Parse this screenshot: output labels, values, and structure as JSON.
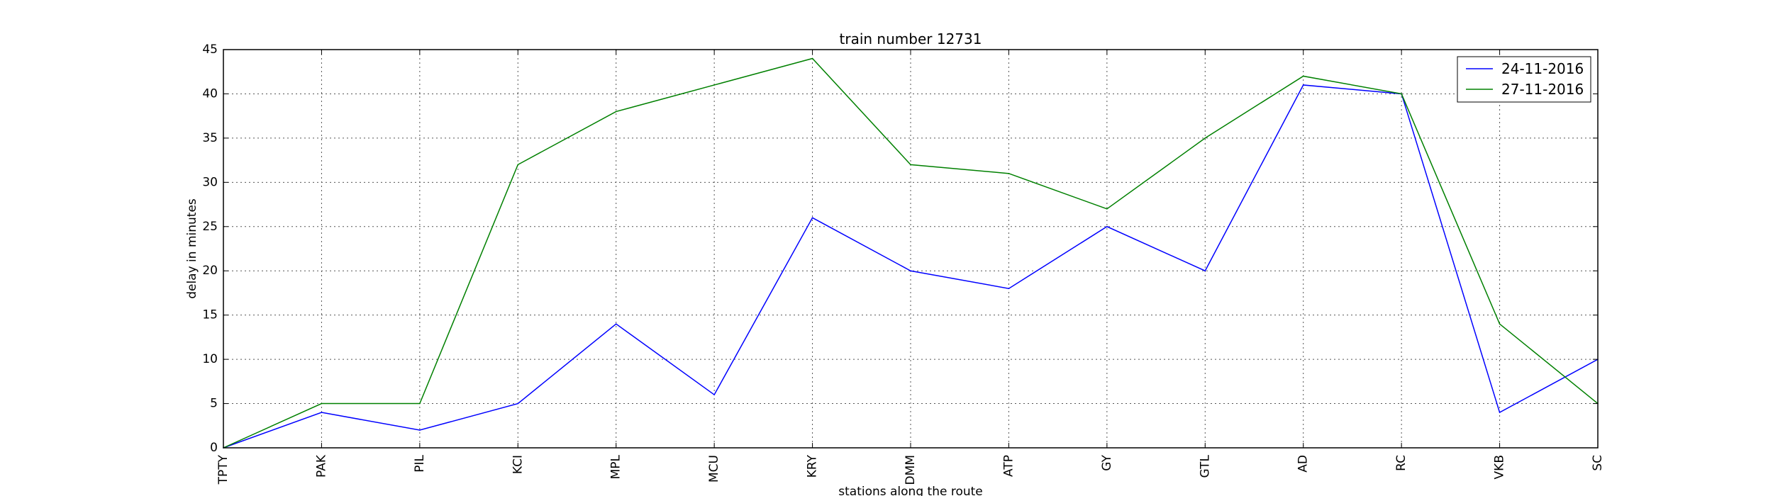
{
  "chart_data": {
    "type": "line",
    "title": "train number 12731",
    "xlabel": "stations along the route",
    "ylabel": "delay in minutes",
    "categories": [
      "TPTY",
      "PAK",
      "PIL",
      "KCI",
      "MPL",
      "MCU",
      "KRY",
      "DMM",
      "ATP",
      "GY",
      "GTL",
      "AD",
      "RC",
      "VKB",
      "SC"
    ],
    "ylim": [
      0,
      45
    ],
    "yticks": [
      0,
      5,
      10,
      15,
      20,
      25,
      30,
      35,
      40,
      45
    ],
    "grid": true,
    "legend_position": "top-right",
    "series": [
      {
        "name": "24-11-2016",
        "color": "#0000ff",
        "values": [
          0,
          4,
          2,
          5,
          14,
          6,
          26,
          20,
          18,
          25,
          20,
          41,
          40,
          4,
          10
        ]
      },
      {
        "name": "27-11-2016",
        "color": "#008000",
        "values": [
          0,
          5,
          5,
          32,
          38,
          41,
          44,
          32,
          31,
          27,
          35,
          42,
          40,
          14,
          5
        ]
      }
    ]
  }
}
